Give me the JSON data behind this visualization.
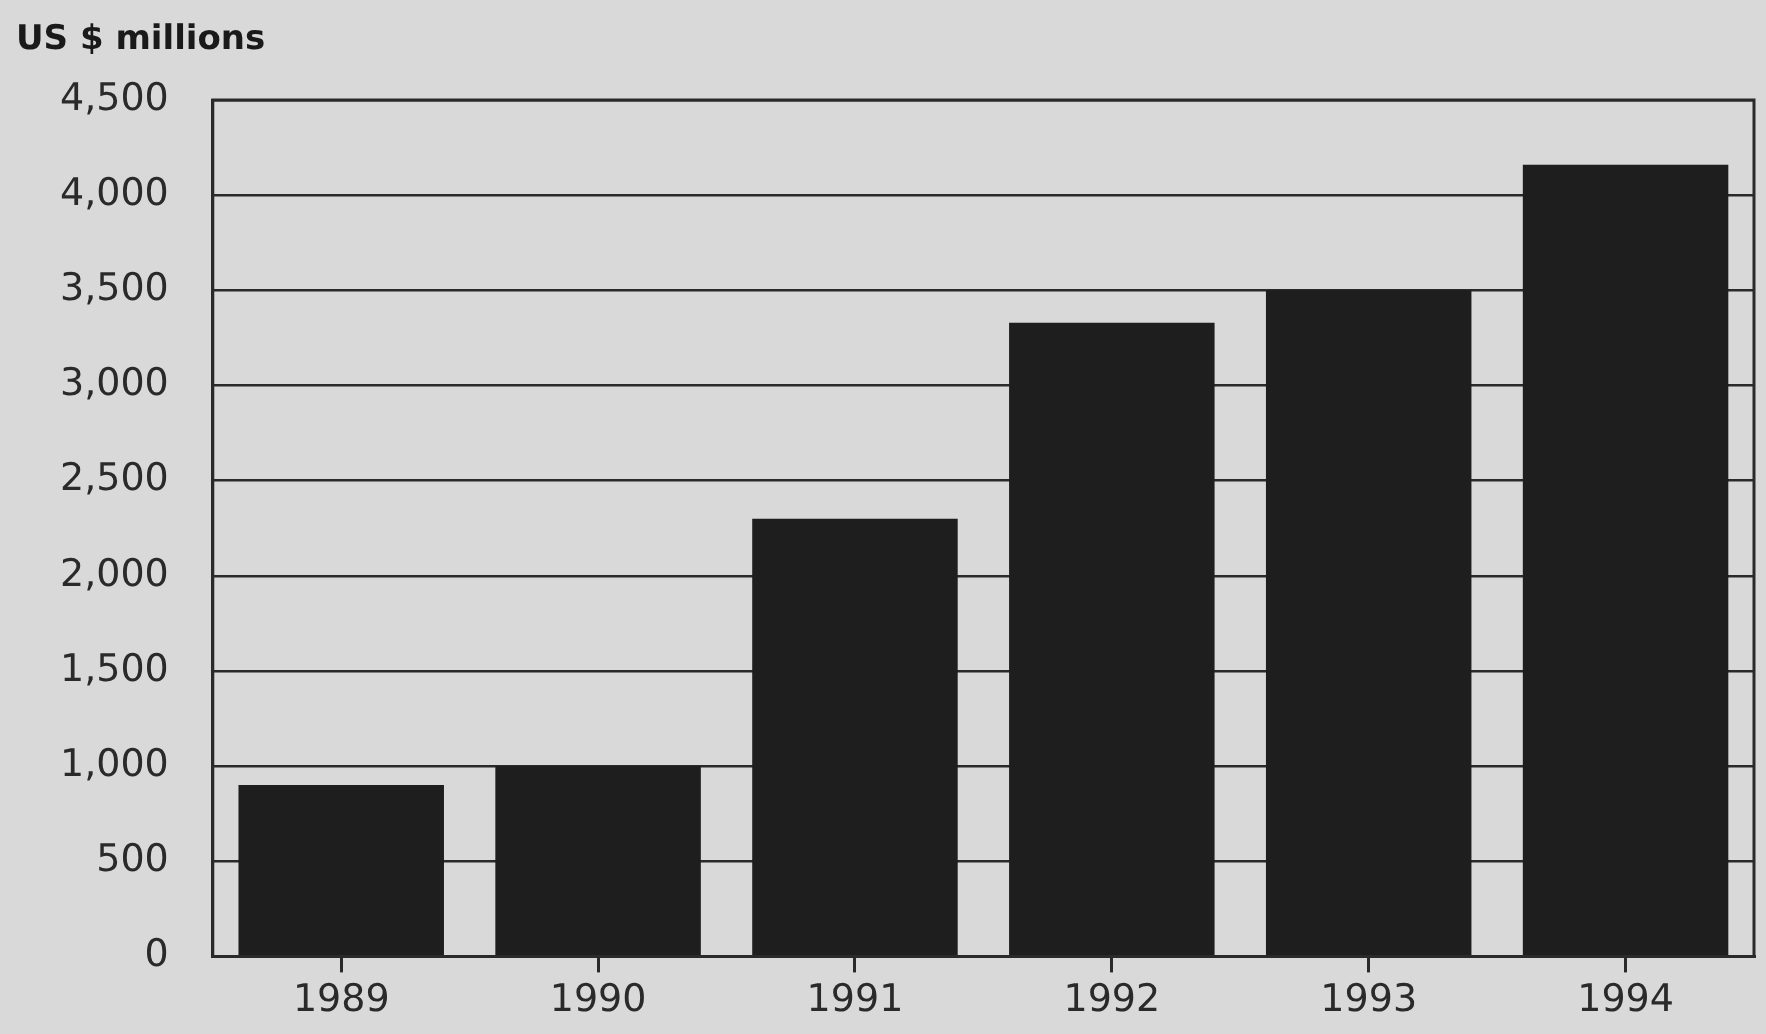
{
  "chart_data": {
    "type": "bar",
    "ylabel": "US $ millions",
    "categories": [
      "1989",
      "1990",
      "1991",
      "1992",
      "1993",
      "1994"
    ],
    "values": [
      900,
      1000,
      2300,
      3330,
      3500,
      4160
    ],
    "color": "#1e1e1e",
    "ylim": [
      0,
      4500
    ],
    "yticks": [
      {
        "value": 0,
        "label": "0"
      },
      {
        "value": 500,
        "label": "500"
      },
      {
        "value": 1000,
        "label": "1,000"
      },
      {
        "value": 1500,
        "label": "1,500"
      },
      {
        "value": 2000,
        "label": "2,000"
      },
      {
        "value": 2500,
        "label": "2,500"
      },
      {
        "value": 3000,
        "label": "3,000"
      },
      {
        "value": 3500,
        "label": "3,500"
      },
      {
        "value": 4000,
        "label": "4,000"
      },
      {
        "value": 4500,
        "label": "4,500"
      }
    ],
    "grid": "y",
    "legend": false
  }
}
